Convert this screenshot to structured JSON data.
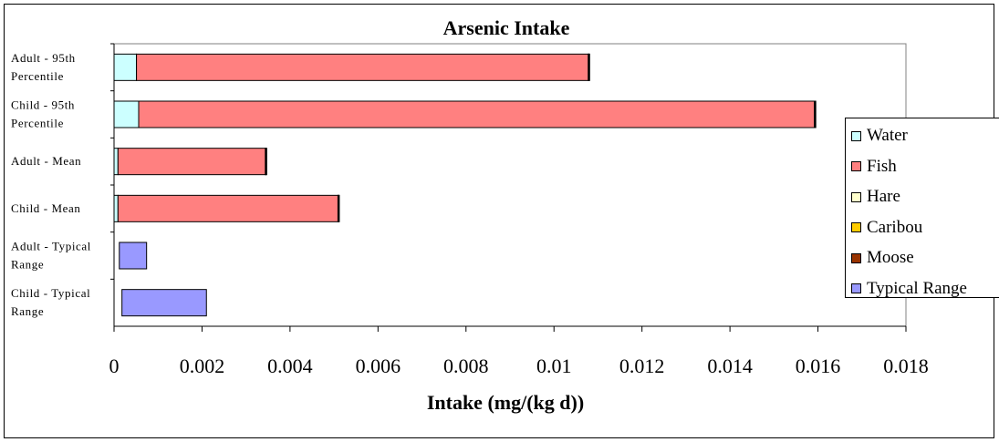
{
  "chart_data": {
    "type": "bar",
    "orientation": "horizontal",
    "stacked": true,
    "title": "Arsenic Intake",
    "xlabel": "Intake (mg/(kg d))",
    "ylabel": "",
    "xlim": [
      0,
      0.018
    ],
    "x_ticks": [
      "0",
      "0.002",
      "0.004",
      "0.006",
      "0.008",
      "0.01",
      "0.012",
      "0.014",
      "0.016",
      "0.018"
    ],
    "x_tick_values": [
      0,
      0.002,
      0.004,
      0.006,
      0.008,
      0.01,
      0.012,
      0.014,
      0.016,
      0.018
    ],
    "grid": false,
    "legend_position": "right",
    "categories": [
      [
        "Adult - 95th",
        "Percentile"
      ],
      [
        "Child - 95th",
        "Percentile"
      ],
      [
        "Adult - Mean"
      ],
      [
        "Child - Mean"
      ],
      [
        "Adult - Typical",
        "Range"
      ],
      [
        "Child - Typical",
        "Range"
      ]
    ],
    "series": [
      {
        "name": "Water",
        "color": "#ccffff",
        "values": [
          0.00051,
          0.00056,
          9e-05,
          9e-05,
          0,
          0
        ]
      },
      {
        "name": "Fish",
        "color": "#ff8080",
        "values": [
          0.01027,
          0.01536,
          0.00335,
          0.005,
          0,
          0
        ]
      },
      {
        "name": "Hare",
        "color": "#ffffcc",
        "values": [
          1e-05,
          1e-05,
          1e-05,
          1e-05,
          0,
          0
        ]
      },
      {
        "name": "Caribou",
        "color": "#ffcc00",
        "values": [
          1e-05,
          1e-05,
          1e-05,
          1e-05,
          0,
          0
        ]
      },
      {
        "name": "Moose",
        "color": "#993300",
        "values": [
          1e-05,
          1e-05,
          1e-05,
          1e-05,
          0,
          0
        ]
      },
      {
        "name": "Typical Range",
        "color": "#9999ff",
        "values": [
          0,
          0,
          0,
          0,
          0.00062,
          0.00192
        ]
      }
    ],
    "typical_range_offsets": [
      0,
      0,
      0,
      0,
      0.00012,
      0.00018
    ]
  }
}
